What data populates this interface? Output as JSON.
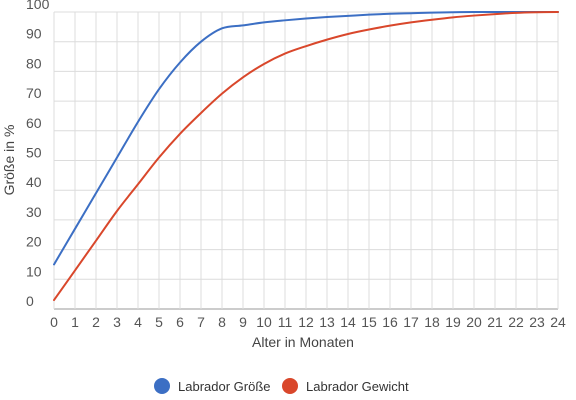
{
  "chart_data": {
    "type": "line",
    "xlabel": "Alter in Monaten",
    "ylabel": "Größe in %",
    "x": [
      0,
      1,
      2,
      3,
      4,
      5,
      6,
      7,
      8,
      9,
      10,
      11,
      12,
      13,
      14,
      15,
      16,
      17,
      18,
      19,
      20,
      21,
      22,
      23,
      24
    ],
    "xticks": [
      "0",
      "1",
      "2",
      "3",
      "4",
      "5",
      "6",
      "7",
      "8",
      "9",
      "10",
      "11",
      "12",
      "13",
      "14",
      "15",
      "16",
      "17",
      "18",
      "19",
      "20",
      "21",
      "22",
      "23",
      "24"
    ],
    "yticks": [
      "0",
      "10",
      "20",
      "30",
      "40",
      "50",
      "60",
      "70",
      "80",
      "90",
      "100"
    ],
    "xlim": [
      0,
      24
    ],
    "ylim": [
      0,
      100
    ],
    "grid": true,
    "legend_position": "bottom",
    "series": [
      {
        "name": "Labrador Größe",
        "color": "#3c6fc4",
        "values": [
          15,
          27,
          39,
          51,
          63,
          74,
          83,
          90,
          94.5,
          95.5,
          96.5,
          97.2,
          97.8,
          98.3,
          98.7,
          99.1,
          99.4,
          99.6,
          99.8,
          99.9,
          100,
          100,
          100,
          100,
          100
        ]
      },
      {
        "name": "Labrador Gewicht",
        "color": "#d9472b",
        "values": [
          3,
          13,
          23,
          33,
          42,
          51,
          59,
          66,
          72.5,
          78,
          82.5,
          86,
          88.5,
          90.7,
          92.6,
          94.1,
          95.4,
          96.5,
          97.4,
          98.2,
          98.8,
          99.3,
          99.7,
          99.9,
          100
        ]
      }
    ]
  }
}
